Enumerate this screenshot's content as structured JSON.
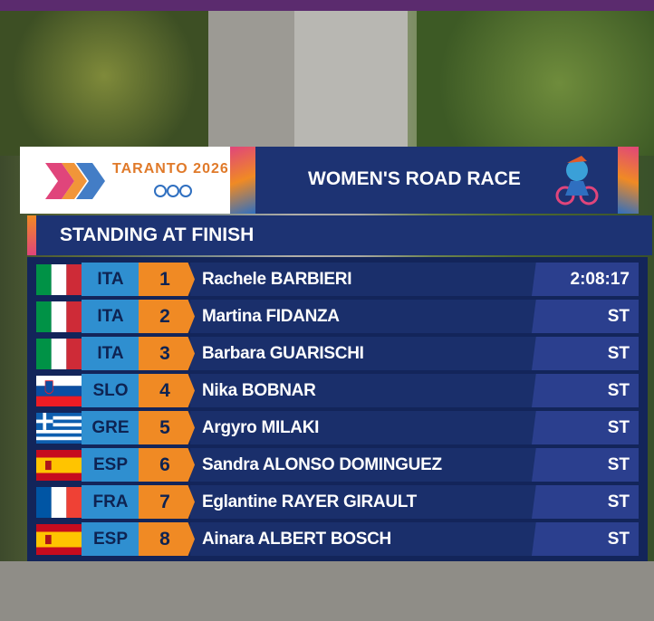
{
  "header": {
    "logo_text": "TARANTO 2026",
    "event": "WOMEN'S ROAD RACE",
    "subtitle": "STANDING AT FINISH"
  },
  "table": {
    "rows": [
      [
        "ITA",
        1,
        "Rachele BARBIERI",
        "2:08:17"
      ],
      [
        "ITA",
        2,
        "Martina FIDANZA",
        "ST"
      ],
      [
        "ITA",
        3,
        "Barbara GUARISCHI",
        "ST"
      ],
      [
        "SLO",
        4,
        "Nika BOBNAR",
        "ST"
      ],
      [
        "GRE",
        5,
        "Argyro MILAKI",
        "ST"
      ],
      [
        "ESP",
        6,
        "Sandra ALONSO DOMINGUEZ",
        "ST"
      ],
      [
        "FRA",
        7,
        "Eglantine RAYER GIRAULT",
        "ST"
      ],
      [
        "ESP",
        8,
        "Ainara ALBERT BOSCH",
        "ST"
      ]
    ]
  }
}
